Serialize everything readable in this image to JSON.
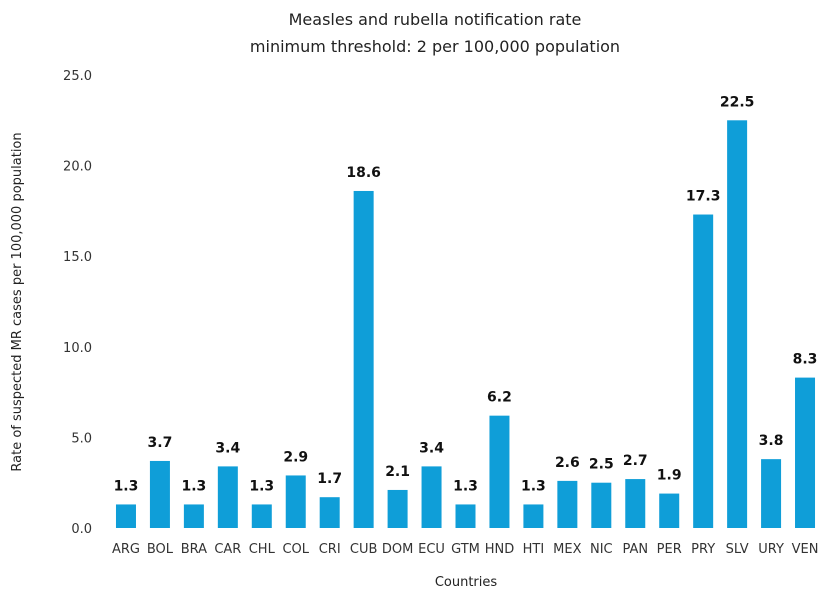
{
  "chart_data": {
    "type": "bar",
    "title": "Measles and rubella notification rate",
    "subtitle": "minimum threshold: 2 per 100,000 population",
    "xlabel": "Countries",
    "ylabel": "Rate of suspected MR cases per 100,000 population",
    "ylim": [
      0,
      25
    ],
    "yticks": [
      "0.0",
      "5.0",
      "10.0",
      "15.0",
      "20.0",
      "25.0"
    ],
    "ytick_values": [
      0,
      5,
      10,
      15,
      20,
      25
    ],
    "categories": [
      "ARG",
      "BOL",
      "BRA",
      "CAR",
      "CHL",
      "COL",
      "CRI",
      "CUB",
      "DOM",
      "ECU",
      "GTM",
      "HND",
      "HTI",
      "MEX",
      "NIC",
      "PAN",
      "PER",
      "PRY",
      "SLV",
      "URY",
      "VEN"
    ],
    "values": [
      1.3,
      3.7,
      1.3,
      3.4,
      1.3,
      2.9,
      1.7,
      18.6,
      2.1,
      3.4,
      1.3,
      6.2,
      1.3,
      2.6,
      2.5,
      2.7,
      1.9,
      17.3,
      22.5,
      3.8,
      8.3
    ],
    "data_labels": [
      "1.3",
      "3.7",
      "1.3",
      "3.4",
      "1.3",
      "2.9",
      "1.7",
      "18.6",
      "2.1",
      "3.4",
      "1.3",
      "6.2",
      "1.3",
      "2.6",
      "2.5",
      "2.7",
      "1.9",
      "17.3",
      "22.5",
      "3.8",
      "8.3"
    ],
    "bar_color": "#0f9ed8",
    "grid": false,
    "legend": "none"
  }
}
